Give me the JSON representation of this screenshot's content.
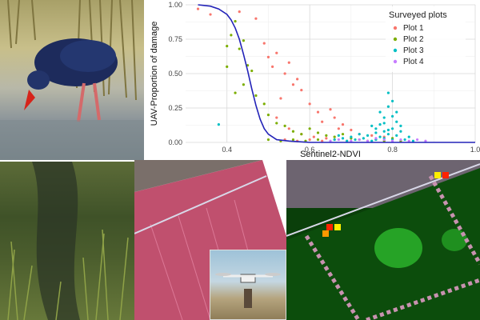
{
  "images": {
    "bird_icon": "purple-swamphen-photo",
    "marsh_icon": "wetland-vegetation-photo",
    "false_color_icon": "false-color-aerial-image",
    "drone_icon": "uav-drone-photo",
    "ndvi_icon": "ndvi-grid-map"
  },
  "colors": {
    "plot1": "#f8766d",
    "plot2": "#7cae00",
    "plot3": "#00bfc4",
    "plot4": "#c77cff",
    "curve": "#2323b8",
    "grid": "#ebebeb",
    "grid_major": "#d9d9d9"
  },
  "chart_data": {
    "type": "scatter",
    "xlabel": "Sentinel2-NDVI",
    "ylabel": "UAV-Proportion of damage",
    "xlim": [
      0.3,
      1.0
    ],
    "ylim": [
      0.0,
      1.0
    ],
    "x_ticks": [
      "0.4",
      "0.6",
      "0.8",
      "1.0"
    ],
    "x_tick_values": [
      0.4,
      0.6,
      0.8,
      1.0
    ],
    "y_ticks": [
      "0.00",
      "0.25",
      "0.50",
      "0.75",
      "1.00"
    ],
    "y_tick_values": [
      0.0,
      0.25,
      0.5,
      0.75,
      1.0
    ],
    "grid": true,
    "legend": {
      "title": "Surveyed plots",
      "position": "top-right"
    },
    "series": [
      {
        "name": "Plot 1",
        "points": [
          [
            0.33,
            0.97
          ],
          [
            0.36,
            0.93
          ],
          [
            0.43,
            0.95
          ],
          [
            0.47,
            0.9
          ],
          [
            0.49,
            0.72
          ],
          [
            0.5,
            0.62
          ],
          [
            0.51,
            0.55
          ],
          [
            0.52,
            0.65
          ],
          [
            0.53,
            0.32
          ],
          [
            0.54,
            0.5
          ],
          [
            0.55,
            0.58
          ],
          [
            0.56,
            0.42
          ],
          [
            0.57,
            0.46
          ],
          [
            0.58,
            0.38
          ],
          [
            0.6,
            0.28
          ],
          [
            0.62,
            0.22
          ],
          [
            0.63,
            0.15
          ],
          [
            0.65,
            0.24
          ],
          [
            0.66,
            0.18
          ],
          [
            0.67,
            0.1
          ],
          [
            0.68,
            0.13
          ],
          [
            0.7,
            0.09
          ],
          [
            0.72,
            0.06
          ],
          [
            0.75,
            0.05
          ],
          [
            0.78,
            0.04
          ],
          [
            0.52,
            0.18
          ],
          [
            0.55,
            0.1
          ],
          [
            0.58,
            0.06
          ],
          [
            0.61,
            0.04
          ],
          [
            0.64,
            0.03
          ],
          [
            0.54,
            0.02
          ],
          [
            0.57,
            0.01
          ],
          [
            0.6,
            0.02
          ],
          [
            0.63,
            0.01
          ],
          [
            0.66,
            0.02
          ],
          [
            0.69,
            0.01
          ]
        ]
      },
      {
        "name": "Plot 2",
        "points": [
          [
            0.4,
            0.7
          ],
          [
            0.41,
            0.78
          ],
          [
            0.42,
            0.88
          ],
          [
            0.43,
            0.68
          ],
          [
            0.44,
            0.74
          ],
          [
            0.45,
            0.56
          ],
          [
            0.46,
            0.52
          ],
          [
            0.4,
            0.55
          ],
          [
            0.42,
            0.36
          ],
          [
            0.44,
            0.42
          ],
          [
            0.47,
            0.34
          ],
          [
            0.49,
            0.28
          ],
          [
            0.5,
            0.2
          ],
          [
            0.52,
            0.14
          ],
          [
            0.54,
            0.12
          ],
          [
            0.56,
            0.08
          ],
          [
            0.58,
            0.06
          ],
          [
            0.6,
            0.1
          ],
          [
            0.62,
            0.07
          ],
          [
            0.64,
            0.05
          ],
          [
            0.66,
            0.04
          ],
          [
            0.68,
            0.06
          ],
          [
            0.7,
            0.03
          ],
          [
            0.72,
            0.02
          ],
          [
            0.74,
            0.01
          ],
          [
            0.76,
            0.02
          ],
          [
            0.78,
            0.01
          ],
          [
            0.8,
            0.03
          ],
          [
            0.82,
            0.01
          ],
          [
            0.5,
            0.02
          ],
          [
            0.53,
            0.01
          ],
          [
            0.56,
            0.02
          ],
          [
            0.59,
            0.01
          ],
          [
            0.62,
            0.02
          ]
        ]
      },
      {
        "name": "Plot 3",
        "points": [
          [
            0.38,
            0.13
          ],
          [
            0.74,
            0.05
          ],
          [
            0.75,
            0.12
          ],
          [
            0.76,
            0.07
          ],
          [
            0.77,
            0.22
          ],
          [
            0.78,
            0.18
          ],
          [
            0.79,
            0.36
          ],
          [
            0.8,
            0.3
          ],
          [
            0.8,
            0.1
          ],
          [
            0.81,
            0.15
          ],
          [
            0.79,
            0.26
          ],
          [
            0.78,
            0.08
          ],
          [
            0.77,
            0.04
          ],
          [
            0.76,
            0.02
          ],
          [
            0.75,
            0.01
          ],
          [
            0.78,
            0.03
          ],
          [
            0.79,
            0.06
          ],
          [
            0.8,
            0.02
          ],
          [
            0.81,
            0.05
          ],
          [
            0.82,
            0.08
          ],
          [
            0.83,
            0.02
          ],
          [
            0.84,
            0.04
          ],
          [
            0.85,
            0.01
          ],
          [
            0.73,
            0.03
          ],
          [
            0.72,
            0.06
          ],
          [
            0.71,
            0.02
          ],
          [
            0.7,
            0.04
          ],
          [
            0.69,
            0.01
          ],
          [
            0.68,
            0.03
          ],
          [
            0.67,
            0.05
          ],
          [
            0.66,
            0.02
          ],
          [
            0.8,
            0.19
          ],
          [
            0.81,
            0.22
          ],
          [
            0.82,
            0.12
          ],
          [
            0.78,
            0.14
          ],
          [
            0.76,
            0.1
          ],
          [
            0.77,
            0.13
          ],
          [
            0.79,
            0.09
          ]
        ]
      },
      {
        "name": "Plot 4",
        "points": [
          [
            0.7,
            0.01
          ],
          [
            0.72,
            0.02
          ],
          [
            0.74,
            0.01
          ],
          [
            0.76,
            0.03
          ],
          [
            0.78,
            0.02
          ],
          [
            0.8,
            0.01
          ],
          [
            0.82,
            0.02
          ],
          [
            0.84,
            0.01
          ],
          [
            0.86,
            0.02
          ],
          [
            0.88,
            0.01
          ],
          [
            0.65,
            0.01
          ],
          [
            0.67,
            0.02
          ]
        ]
      }
    ],
    "fitted_curve": {
      "x": [
        0.33,
        0.36,
        0.38,
        0.4,
        0.41,
        0.42,
        0.43,
        0.44,
        0.45,
        0.46,
        0.47,
        0.48,
        0.49,
        0.5,
        0.52,
        0.55,
        0.6,
        0.7,
        0.8,
        1.0
      ],
      "y": [
        1.0,
        0.99,
        0.97,
        0.93,
        0.89,
        0.83,
        0.75,
        0.64,
        0.52,
        0.39,
        0.27,
        0.17,
        0.1,
        0.06,
        0.02,
        0.01,
        0.0,
        0.0,
        0.0,
        0.0
      ]
    }
  }
}
